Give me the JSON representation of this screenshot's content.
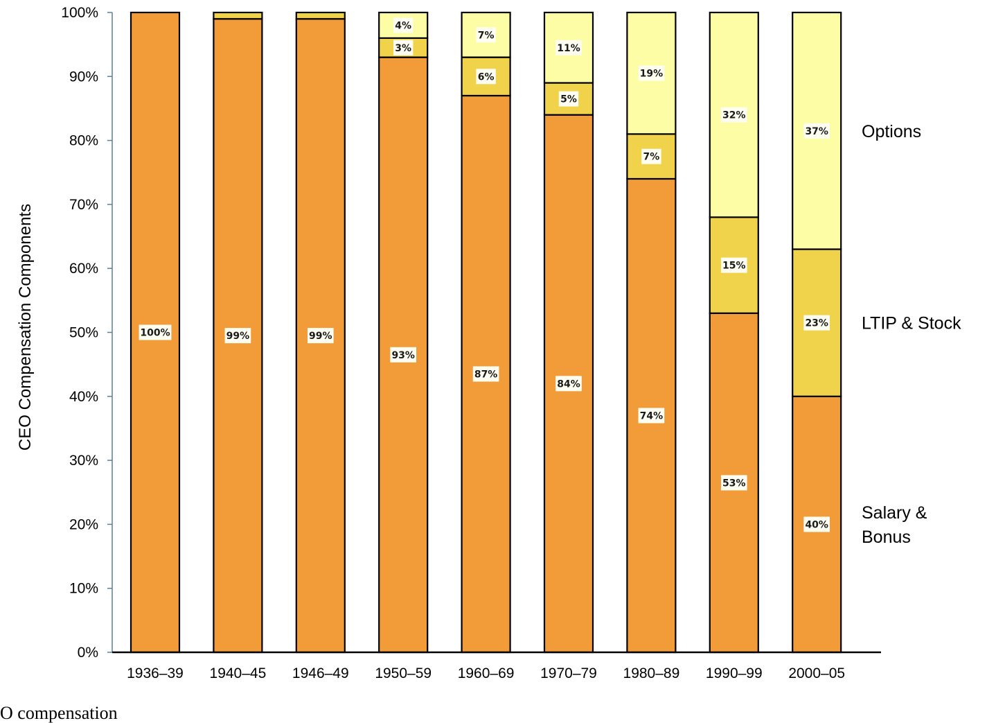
{
  "caption": "O compensation",
  "chart_data": {
    "type": "bar",
    "stacked": true,
    "title": "",
    "xlabel": "",
    "ylabel": "CEO Compensation Components",
    "ylim": [
      0,
      100
    ],
    "y_ticks": [
      "0%",
      "10%",
      "20%",
      "30%",
      "40%",
      "50%",
      "60%",
      "70%",
      "80%",
      "90%",
      "100%"
    ],
    "grid": false,
    "legend": "right-side labels",
    "categories": [
      "1936–39",
      "1940–45",
      "1946–49",
      "1950–59",
      "1960–69",
      "1970–79",
      "1980–89",
      "1990–99",
      "2000–05"
    ],
    "series": [
      {
        "name": "Salary & Bonus",
        "name_lines": [
          "Salary &",
          "Bonus"
        ],
        "color": "#f19c38",
        "values": [
          100,
          99,
          99,
          93,
          87,
          84,
          74,
          53,
          40
        ],
        "labels": [
          "100%",
          "99%",
          "99%",
          "93%",
          "87%",
          "84%",
          "74%",
          "53%",
          "40%"
        ]
      },
      {
        "name": "LTIP & Stock",
        "name_lines": [
          "LTIP & Stock"
        ],
        "color": "#f0d24b",
        "values": [
          0,
          1,
          1,
          3,
          6,
          5,
          7,
          15,
          23
        ],
        "labels": [
          "",
          "",
          "",
          "3%",
          "6%",
          "5%",
          "7%",
          "15%",
          "23%"
        ]
      },
      {
        "name": "Options",
        "name_lines": [
          "Options"
        ],
        "color": "#fdfda6",
        "values": [
          0,
          0,
          0,
          4,
          7,
          11,
          19,
          32,
          37
        ],
        "labels": [
          "",
          "",
          "",
          "4%",
          "7%",
          "11%",
          "19%",
          "32%",
          "37%"
        ]
      }
    ]
  }
}
